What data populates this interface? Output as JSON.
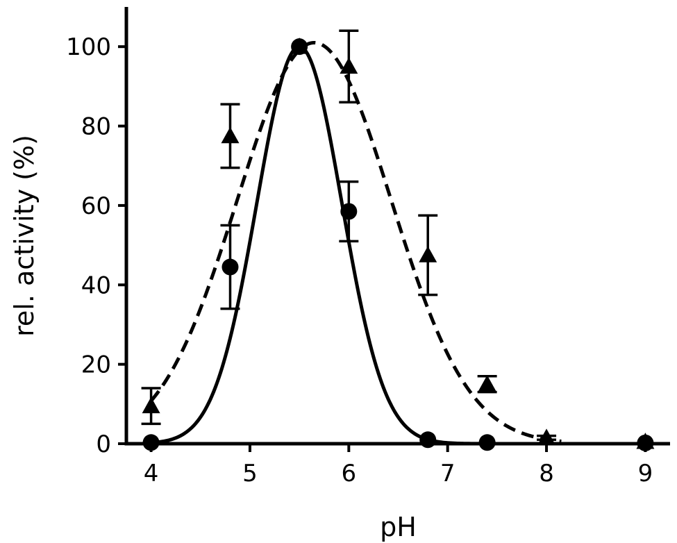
{
  "chart_data": {
    "type": "scatter",
    "title": "",
    "xlabel": "pH",
    "ylabel": "rel. activity (%)",
    "xlim": [
      3.75,
      9.25
    ],
    "ylim": [
      0,
      110
    ],
    "x_ticks": [
      "4",
      "5",
      "6",
      "7",
      "8",
      "9"
    ],
    "y_ticks": [
      "0",
      "20",
      "40",
      "60",
      "80",
      "100"
    ],
    "grid": false,
    "series": [
      {
        "marker": "circle",
        "line_style": "solid",
        "points": [
          {
            "x": 4.0,
            "y": 0.3,
            "err": 0
          },
          {
            "x": 4.8,
            "y": 44.5,
            "err": 10.5
          },
          {
            "x": 5.5,
            "y": 100,
            "err": 0
          },
          {
            "x": 6.0,
            "y": 58.5,
            "err": 7.5
          },
          {
            "x": 6.8,
            "y": 1.0,
            "err": 0
          },
          {
            "x": 7.4,
            "y": 0.3,
            "err": 0
          },
          {
            "x": 9.0,
            "y": 0.2,
            "err": 0
          }
        ],
        "fit": {
          "model": "gaussian",
          "amplitude": 100,
          "center": 5.5,
          "sigma": 0.43,
          "x_range": [
            4.0,
            9.0
          ]
        }
      },
      {
        "marker": "triangle",
        "line_style": "dashed",
        "points": [
          {
            "x": 4.0,
            "y": 9.5,
            "err": 4.5
          },
          {
            "x": 4.8,
            "y": 77.5,
            "err": 8
          },
          {
            "x": 5.5,
            "y": 100,
            "err": 0
          },
          {
            "x": 6.0,
            "y": 95,
            "err": 9
          },
          {
            "x": 6.8,
            "y": 47.5,
            "err": 10
          },
          {
            "x": 7.4,
            "y": 15,
            "err": 2
          },
          {
            "x": 8.0,
            "y": 1.5,
            "err": 0.5
          },
          {
            "x": 9.0,
            "y": 0.5,
            "err": 0
          }
        ],
        "fit": {
          "model": "gaussian",
          "amplitude": 101,
          "center": 5.65,
          "sigma": 0.78,
          "x_range": [
            4.0,
            8.15
          ]
        }
      }
    ]
  }
}
